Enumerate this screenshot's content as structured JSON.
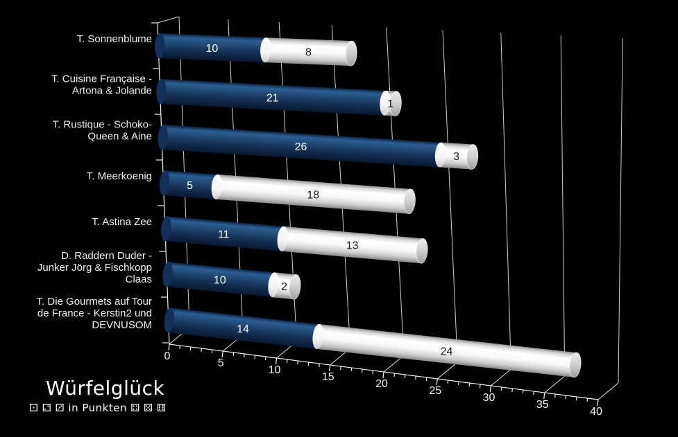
{
  "chart_data": {
    "type": "bar",
    "orientation": "horizontal",
    "stacked": true,
    "style": "3d-cylinder",
    "title": "Würfelglück",
    "subtitle": "⚀ ⚁ ⚂ in Punkten ⚃ ⚄ ⚅",
    "xlabel": "",
    "ylabel": "",
    "xlim": [
      0,
      40
    ],
    "xticks": [
      0,
      5,
      10,
      15,
      20,
      25,
      30,
      35,
      40
    ],
    "minor_tick_step": 1,
    "grid": true,
    "legend": false,
    "background": "#000000",
    "axis_color": "#f2f2f2",
    "gridline_color": "#d0d0d0",
    "categories": [
      "T. Sonnenblume",
      "T. Cuisine Française - Artona & Jolande",
      "T. Rustique - Schoko-Queen & Aine",
      "T. Meerkoenig",
      "T. Astina Zee",
      "D. Raddern Duder - Junker Jörg & Fischkopp Claas",
      "T. Die Gourmets auf Tour de France - Kerstin2 und DEVNUSOM"
    ],
    "category_lines": [
      [
        "T. Sonnenblume"
      ],
      [
        "T. Cuisine Française -",
        "Artona & Jolande"
      ],
      [
        "T. Rustique - Schoko-",
        "Queen & Aine"
      ],
      [
        "T. Meerkoenig"
      ],
      [
        "T. Astina Zee"
      ],
      [
        "D. Raddern Duder -",
        "Junker Jörg & Fischkopp",
        "Claas"
      ],
      [
        "T. Die Gourmets auf Tour",
        "de France - Kerstin2 und",
        "DEVNUSOM"
      ]
    ],
    "series": [
      {
        "name": "blue",
        "color": "#17375D",
        "label_color": "#ffffff",
        "values": [
          10,
          21,
          26,
          5,
          11,
          10,
          14
        ]
      },
      {
        "name": "white",
        "color": "#FFFFFF",
        "label_color": "#1a1a1a",
        "values": [
          8,
          1,
          3,
          18,
          13,
          2,
          24
        ]
      }
    ]
  }
}
